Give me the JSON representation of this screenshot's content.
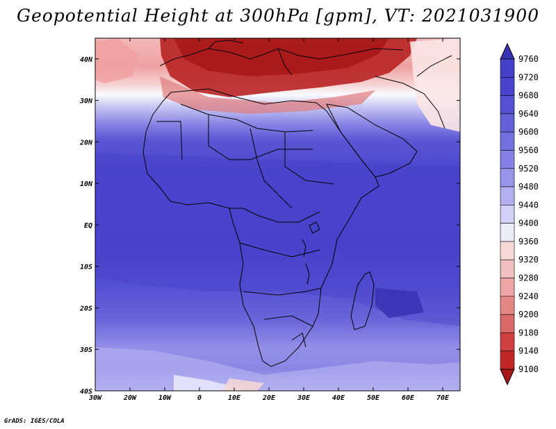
{
  "title": "Geopotential Height at 300hPa [gpm], VT: 2021031900",
  "credit": "GrADS: IGES/COLA",
  "map": {
    "lon_range": [
      -30,
      75
    ],
    "lat_range": [
      -40,
      45
    ],
    "lon_ticks": [
      "30W",
      "20W",
      "10W",
      "0",
      "10E",
      "20E",
      "30E",
      "40E",
      "50E",
      "60E",
      "70E"
    ],
    "lat_ticks": [
      "40N",
      "30N",
      "20N",
      "10N",
      "EQ",
      "10S",
      "20S",
      "30S",
      "40S"
    ],
    "field": "geopotential height",
    "level": "300hPa",
    "units": "gpm"
  },
  "colorbar": {
    "levels": [
      9760,
      9720,
      9680,
      9640,
      9600,
      9560,
      9520,
      9480,
      9440,
      9400,
      9360,
      9320,
      9280,
      9240,
      9200,
      9180,
      9140,
      9100
    ],
    "colors": [
      "#3a34b4",
      "#4540c8",
      "#4a44cc",
      "#5550d2",
      "#6460d8",
      "#7470de",
      "#8480e6",
      "#9894ea",
      "#b4b0f0",
      "#d2d0f6",
      "#ececf8",
      "#f6d8d8",
      "#f0c0c0",
      "#eca6a6",
      "#e48686",
      "#da6a6a",
      "#d04040",
      "#c02828",
      "#a81818"
    ],
    "orientation": "vertical",
    "placement": "right"
  }
}
